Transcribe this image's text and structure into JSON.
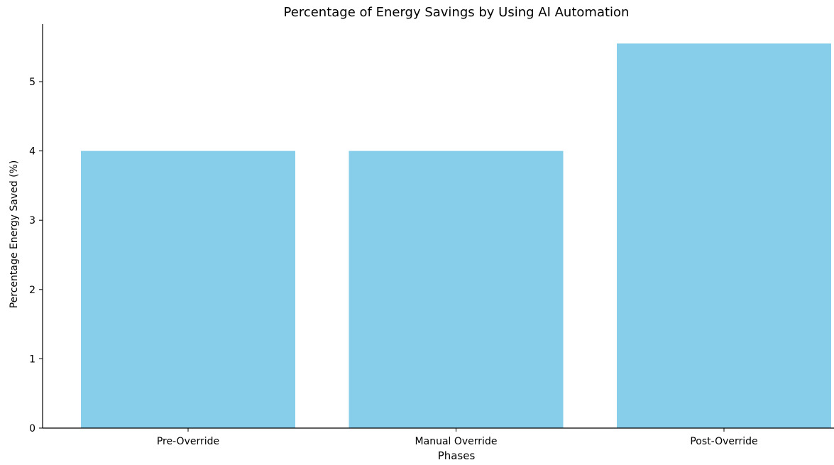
{
  "chart_data": {
    "type": "bar",
    "title": "Percentage of Energy Savings by Using AI Automation",
    "xlabel": "Phases",
    "ylabel": "Percentage Energy Saved (%)",
    "categories": [
      "Pre-Override",
      "Manual Override",
      "Post-Override"
    ],
    "values": [
      4.0,
      4.0,
      5.55
    ],
    "ylim": [
      0,
      5.83
    ],
    "yticks": [
      "0",
      "1",
      "2",
      "3",
      "4",
      "5"
    ],
    "grid": false,
    "bar_color": "#87CEEB",
    "axis_color": "#000000"
  }
}
